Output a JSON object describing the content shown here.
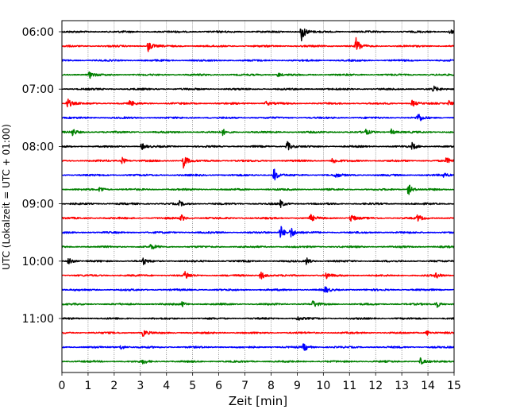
{
  "chart_data": {
    "type": "line",
    "title": "",
    "xlabel": "Zeit  [min]",
    "ylabel": "UTC (Lokalzeit = UTC + 01:00)",
    "xlim": [
      0,
      15
    ],
    "x_ticks": [
      "0",
      "1",
      "2",
      "3",
      "4",
      "5",
      "6",
      "7",
      "8",
      "9",
      "10",
      "11",
      "12",
      "13",
      "14",
      "15"
    ],
    "y_tick_labels": [
      "06:00",
      "07:00",
      "08:00",
      "09:00",
      "10:00",
      "11:00"
    ],
    "trace_interval_minutes": 15,
    "start_time": "06:00",
    "grid": true,
    "colors": [
      "#000000",
      "#ff0000",
      "#0000ff",
      "#008000"
    ],
    "series": [
      {
        "start": "06:00",
        "color": "#000000",
        "events": [
          [
            9.15,
            4.5
          ],
          [
            14.8,
            1.5
          ]
        ]
      },
      {
        "start": "06:15",
        "color": "#ff0000",
        "events": [
          [
            3.3,
            2.5
          ],
          [
            11.25,
            3.5
          ]
        ]
      },
      {
        "start": "06:30",
        "color": "#0000ff",
        "events": []
      },
      {
        "start": "06:45",
        "color": "#008000",
        "events": [
          [
            1.05,
            1.5
          ],
          [
            8.25,
            1.0
          ]
        ]
      },
      {
        "start": "07:00",
        "color": "#000000",
        "events": [
          [
            14.2,
            1.2
          ]
        ]
      },
      {
        "start": "07:15",
        "color": "#ff0000",
        "events": [
          [
            0.2,
            2.5
          ],
          [
            2.6,
            1.3
          ],
          [
            7.8,
            1.0
          ],
          [
            13.4,
            1.5
          ],
          [
            14.8,
            1.2
          ]
        ]
      },
      {
        "start": "07:30",
        "color": "#0000ff",
        "events": [
          [
            13.6,
            2.5
          ]
        ]
      },
      {
        "start": "07:45",
        "color": "#008000",
        "events": [
          [
            0.4,
            1.5
          ],
          [
            6.15,
            1.2
          ],
          [
            11.6,
            1.2
          ],
          [
            12.6,
            1.2
          ]
        ]
      },
      {
        "start": "08:00",
        "color": "#000000",
        "events": [
          [
            3.05,
            1.5
          ],
          [
            8.6,
            2.5
          ],
          [
            13.4,
            1.5
          ]
        ]
      },
      {
        "start": "08:15",
        "color": "#ff0000",
        "events": [
          [
            2.3,
            1.5
          ],
          [
            4.65,
            3.0
          ],
          [
            10.35,
            1.5
          ],
          [
            14.7,
            1.2
          ]
        ]
      },
      {
        "start": "08:30",
        "color": "#0000ff",
        "events": [
          [
            8.1,
            3.0
          ],
          [
            10.45,
            1.2
          ],
          [
            14.6,
            1.0
          ]
        ]
      },
      {
        "start": "08:45",
        "color": "#008000",
        "events": [
          [
            1.45,
            1.5
          ],
          [
            13.25,
            2.5
          ]
        ]
      },
      {
        "start": "09:00",
        "color": "#000000",
        "events": [
          [
            4.5,
            1.0
          ],
          [
            8.35,
            1.5
          ]
        ]
      },
      {
        "start": "09:15",
        "color": "#ff0000",
        "events": [
          [
            4.55,
            1.5
          ],
          [
            9.5,
            1.5
          ],
          [
            11.05,
            2.0
          ],
          [
            13.6,
            1.5
          ]
        ]
      },
      {
        "start": "09:30",
        "color": "#0000ff",
        "events": [
          [
            8.35,
            3.5
          ],
          [
            8.75,
            2.5
          ]
        ]
      },
      {
        "start": "09:45",
        "color": "#008000",
        "events": [
          [
            3.4,
            1.2
          ]
        ]
      },
      {
        "start": "10:00",
        "color": "#000000",
        "events": [
          [
            0.25,
            2.0
          ],
          [
            3.1,
            1.5
          ],
          [
            9.35,
            1.5
          ]
        ]
      },
      {
        "start": "10:15",
        "color": "#ff0000",
        "events": [
          [
            4.7,
            2.0
          ],
          [
            7.6,
            2.0
          ],
          [
            10.1,
            1.5
          ],
          [
            14.3,
            1.2
          ]
        ]
      },
      {
        "start": "10:30",
        "color": "#0000ff",
        "events": [
          [
            10.05,
            1.5
          ]
        ]
      },
      {
        "start": "10:45",
        "color": "#008000",
        "events": [
          [
            4.6,
            1.0
          ],
          [
            9.6,
            1.5
          ],
          [
            14.3,
            2.0
          ]
        ]
      },
      {
        "start": "11:00",
        "color": "#000000",
        "events": [
          [
            9.0,
            1.0
          ]
        ]
      },
      {
        "start": "11:15",
        "color": "#ff0000",
        "events": [
          [
            3.1,
            1.5
          ],
          [
            13.95,
            1.2
          ]
        ]
      },
      {
        "start": "11:30",
        "color": "#0000ff",
        "events": [
          [
            2.25,
            1.2
          ],
          [
            9.25,
            2.0
          ]
        ]
      },
      {
        "start": "11:45",
        "color": "#008000",
        "events": [
          [
            3.1,
            1.0
          ],
          [
            13.7,
            1.5
          ]
        ]
      }
    ]
  }
}
